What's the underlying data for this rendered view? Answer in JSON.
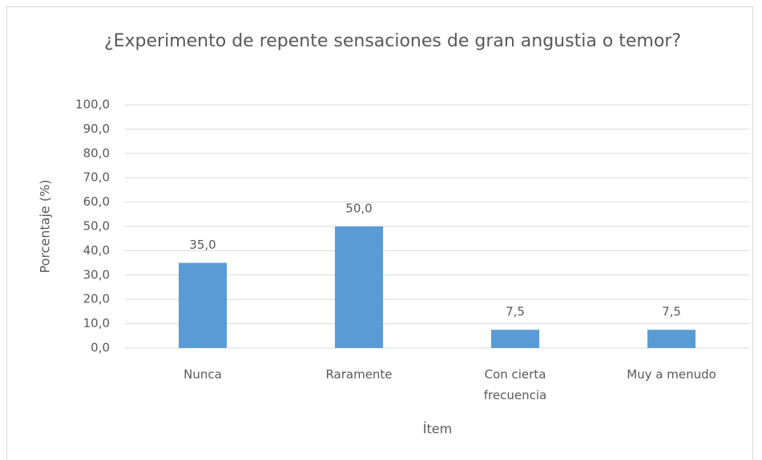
{
  "chart_data": {
    "type": "bar",
    "title": "¿Experimento de repente sensaciones de gran angustia o temor?",
    "xlabel": "Ítem",
    "ylabel": "Porcentaje (%)",
    "categories": [
      "Nunca",
      "Raramente",
      "Con cierta frecuencia",
      "Muy a menudo"
    ],
    "values": [
      35,
      50,
      7.5,
      7.5
    ],
    "value_labels": [
      "35,0",
      "50,0",
      "7,5",
      "7,5"
    ],
    "color": "#5b9bd5",
    "ylim": [
      0,
      100
    ],
    "yticks": [
      {
        "value": 0,
        "label": "0,0"
      },
      {
        "value": 10,
        "label": "10,0"
      },
      {
        "value": 20,
        "label": "20,0"
      },
      {
        "value": 30,
        "label": "30,0"
      },
      {
        "value": 40,
        "label": "40,0"
      },
      {
        "value": 50,
        "label": "50,0"
      },
      {
        "value": 60,
        "label": "60,0"
      },
      {
        "value": 70,
        "label": "70,0"
      },
      {
        "value": 80,
        "label": "80,0"
      },
      {
        "value": 90,
        "label": "90,0"
      },
      {
        "value": 100,
        "label": "100,0"
      }
    ],
    "grid": true
  }
}
